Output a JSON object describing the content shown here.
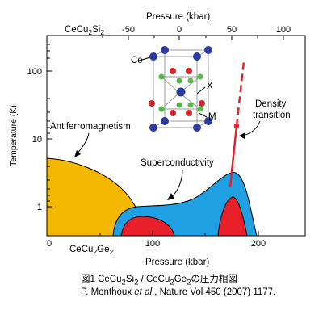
{
  "figure": {
    "top_axis": {
      "title": "Pressure (kbar)",
      "compound": "CeCu",
      "compound_sub": "2",
      "compound_tail": "Si",
      "compound_sub2": "2",
      "ticks": [
        "-50",
        "0",
        "50",
        "100"
      ]
    },
    "bottom_axis": {
      "title": "Pressure (kbar)",
      "compound": "CeCu",
      "compound_sub": "2",
      "compound_tail": "Ge",
      "compound_sub2": "2",
      "ticks": [
        "0",
        "100",
        "200"
      ]
    },
    "left_axis": {
      "title": "Temperature (K)",
      "scale": "log",
      "ticks": [
        "1",
        "10",
        "100"
      ]
    },
    "regions": {
      "antiferromagnetism": "Antiferromagnetism",
      "superconductivity": "Superconductivity",
      "density_line1": "Density",
      "density_line2": "transition"
    },
    "crystal_labels": {
      "ce": "Ce",
      "x": "X",
      "m": "M"
    },
    "colors": {
      "antiferro": "#F5B800",
      "sc_dome": "#1FA0E2",
      "sc_core": "#E8202A",
      "density_line": "#E8202A",
      "ce_atom": "#2B3A9E",
      "x_atom": "#D0262E",
      "m_atom": "#56B947"
    }
  },
  "caption": {
    "line1_prefix": "図1 CeCu",
    "line1_s1": "2",
    "line1_mid1": "Si",
    "line1_s2": "2",
    "line1_mid2": " / CeCu",
    "line1_s3": "2",
    "line1_mid3": "Ge",
    "line1_s4": "2",
    "line1_suffix": "の圧力相図",
    "line2_author": "P. Monthoux ",
    "line2_etal": "et al",
    "line2_rest": "., Nature Vol 450 (2007) 1177."
  }
}
